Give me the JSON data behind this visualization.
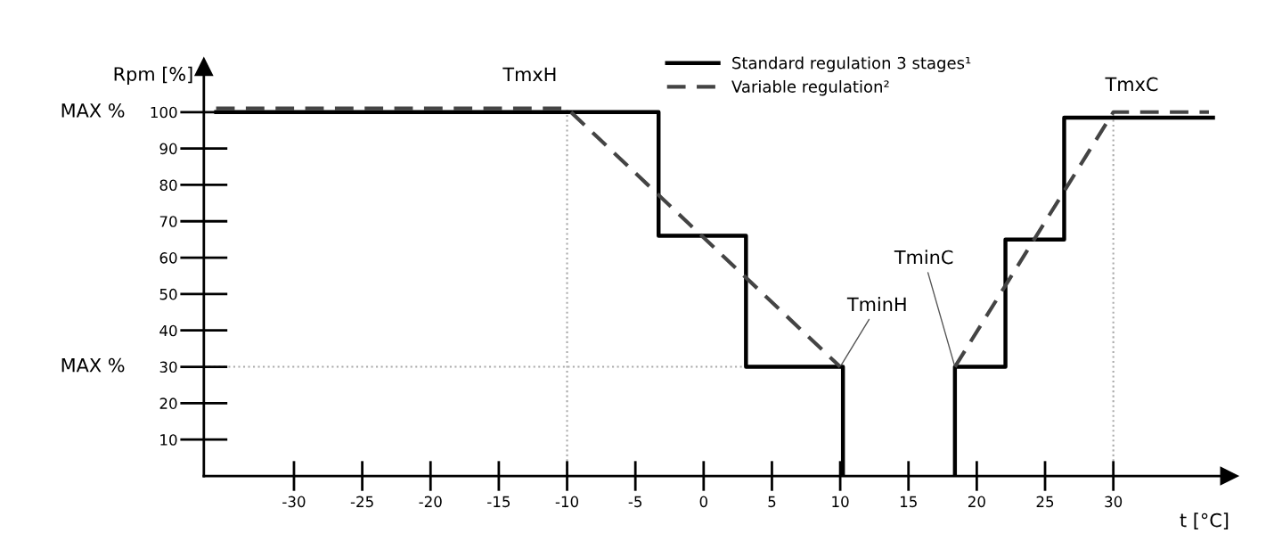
{
  "chart_data": {
    "type": "step",
    "xlabel": "t [°C]",
    "ylabel": "Rpm [%]",
    "xlim": [
      -36.6,
      38.5
    ],
    "ylim": [
      0,
      112.5
    ],
    "xticks": [
      -30,
      -25,
      -20,
      -15,
      -10,
      -5,
      0,
      5,
      10,
      15,
      20,
      25,
      30
    ],
    "yticks": [
      10,
      20,
      30,
      40,
      50,
      60,
      70,
      80,
      90,
      100
    ],
    "series": [
      {
        "name": "Standard regulation 3 stages¹",
        "color": "#000000",
        "line_style": "solid",
        "x": [
          -35.7,
          -3.3,
          -3.3,
          3.1,
          3.1,
          10.2,
          10.2,
          null,
          18.4,
          18.4,
          22.1,
          22.1,
          26.4,
          26.4,
          37.3
        ],
        "values": [
          100,
          100,
          66,
          66,
          30,
          30,
          0,
          null,
          0,
          30,
          30,
          65,
          65,
          98.5,
          98.5
        ]
      },
      {
        "name": "Variable regulation²",
        "type": "line",
        "color": "#444444",
        "line_style": "dashed",
        "x": [
          -35.7,
          -10,
          10,
          null,
          18.4,
          30,
          37
        ],
        "values": [
          101,
          101,
          30,
          null,
          30,
          100,
          100
        ]
      }
    ],
    "ref_lines": [
      {
        "axis": "x",
        "value": -10,
        "color": "#aaaaaa",
        "line_style": "dotted"
      },
      {
        "axis": "x",
        "value": 30,
        "color": "#aaaaaa",
        "line_style": "dotted"
      },
      {
        "axis": "y",
        "value": 30,
        "color": "#aaaaaa",
        "line_style": "dotted"
      }
    ],
    "annotations": [
      "MAX %",
      "MAX %",
      {
        "text": "TmxH",
        "x": -10,
        "y": 100
      },
      {
        "text": "TmxC",
        "x": 30,
        "y": 100
      },
      {
        "text": "TminH",
        "x": 10,
        "y": 30
      },
      {
        "text": "TminC",
        "x": 18.4,
        "y": 30
      }
    ],
    "legend": "top",
    "grid": false
  }
}
